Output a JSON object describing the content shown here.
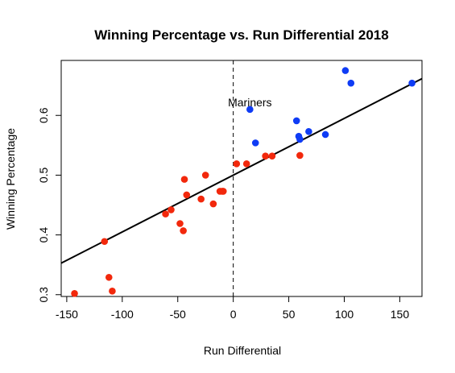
{
  "chart_data": {
    "type": "scatter",
    "title": "Winning Percentage vs. Run Differential 2018",
    "xlabel": "Run Differential",
    "ylabel": "Winning Percentage",
    "xlim": [
      -155,
      170
    ],
    "ylim": [
      0.297,
      0.692
    ],
    "x_ticks": [
      -150,
      -100,
      -50,
      0,
      50,
      100,
      150
    ],
    "x_tick_labels": [
      "-150",
      "-100",
      "-50",
      "0",
      "50",
      "100",
      "150"
    ],
    "y_ticks": [
      0.3,
      0.4,
      0.5,
      0.6
    ],
    "y_tick_labels": [
      "0.3",
      "0.4",
      "0.5",
      "0.6"
    ],
    "grid": false,
    "vline": {
      "x": 0,
      "style": "dashed"
    },
    "regression_line": {
      "intercept": 0.5,
      "slope": 0.00095
    },
    "annotations": [
      {
        "text": "Mariners",
        "x": 15,
        "y": 0.622
      }
    ],
    "colors": {
      "red": "#f2280c",
      "blue": "#0f3cf5",
      "line": "#000000"
    },
    "series": [
      {
        "color": "red",
        "points": [
          [
            -143,
            0.302
          ],
          [
            -116,
            0.389
          ],
          [
            -112,
            0.329
          ],
          [
            -109,
            0.306
          ],
          [
            -61,
            0.435
          ],
          [
            -56,
            0.442
          ],
          [
            -48,
            0.419
          ],
          [
            -45,
            0.407
          ],
          [
            -44,
            0.493
          ],
          [
            -42,
            0.467
          ],
          [
            -29,
            0.46
          ],
          [
            -25,
            0.5
          ],
          [
            -18,
            0.452
          ],
          [
            -12,
            0.473
          ],
          [
            -10,
            0.473
          ],
          [
            -9,
            0.473
          ],
          [
            3,
            0.519
          ],
          [
            12,
            0.519
          ],
          [
            29,
            0.532
          ],
          [
            35,
            0.532
          ],
          [
            60,
            0.533
          ]
        ]
      },
      {
        "color": "blue",
        "points": [
          [
            15,
            0.61
          ],
          [
            20,
            0.554
          ],
          [
            57,
            0.591
          ],
          [
            59,
            0.565
          ],
          [
            60,
            0.56
          ],
          [
            68,
            0.573
          ],
          [
            83,
            0.568
          ],
          [
            101,
            0.675
          ],
          [
            106,
            0.654
          ],
          [
            161,
            0.654
          ]
        ]
      }
    ]
  }
}
